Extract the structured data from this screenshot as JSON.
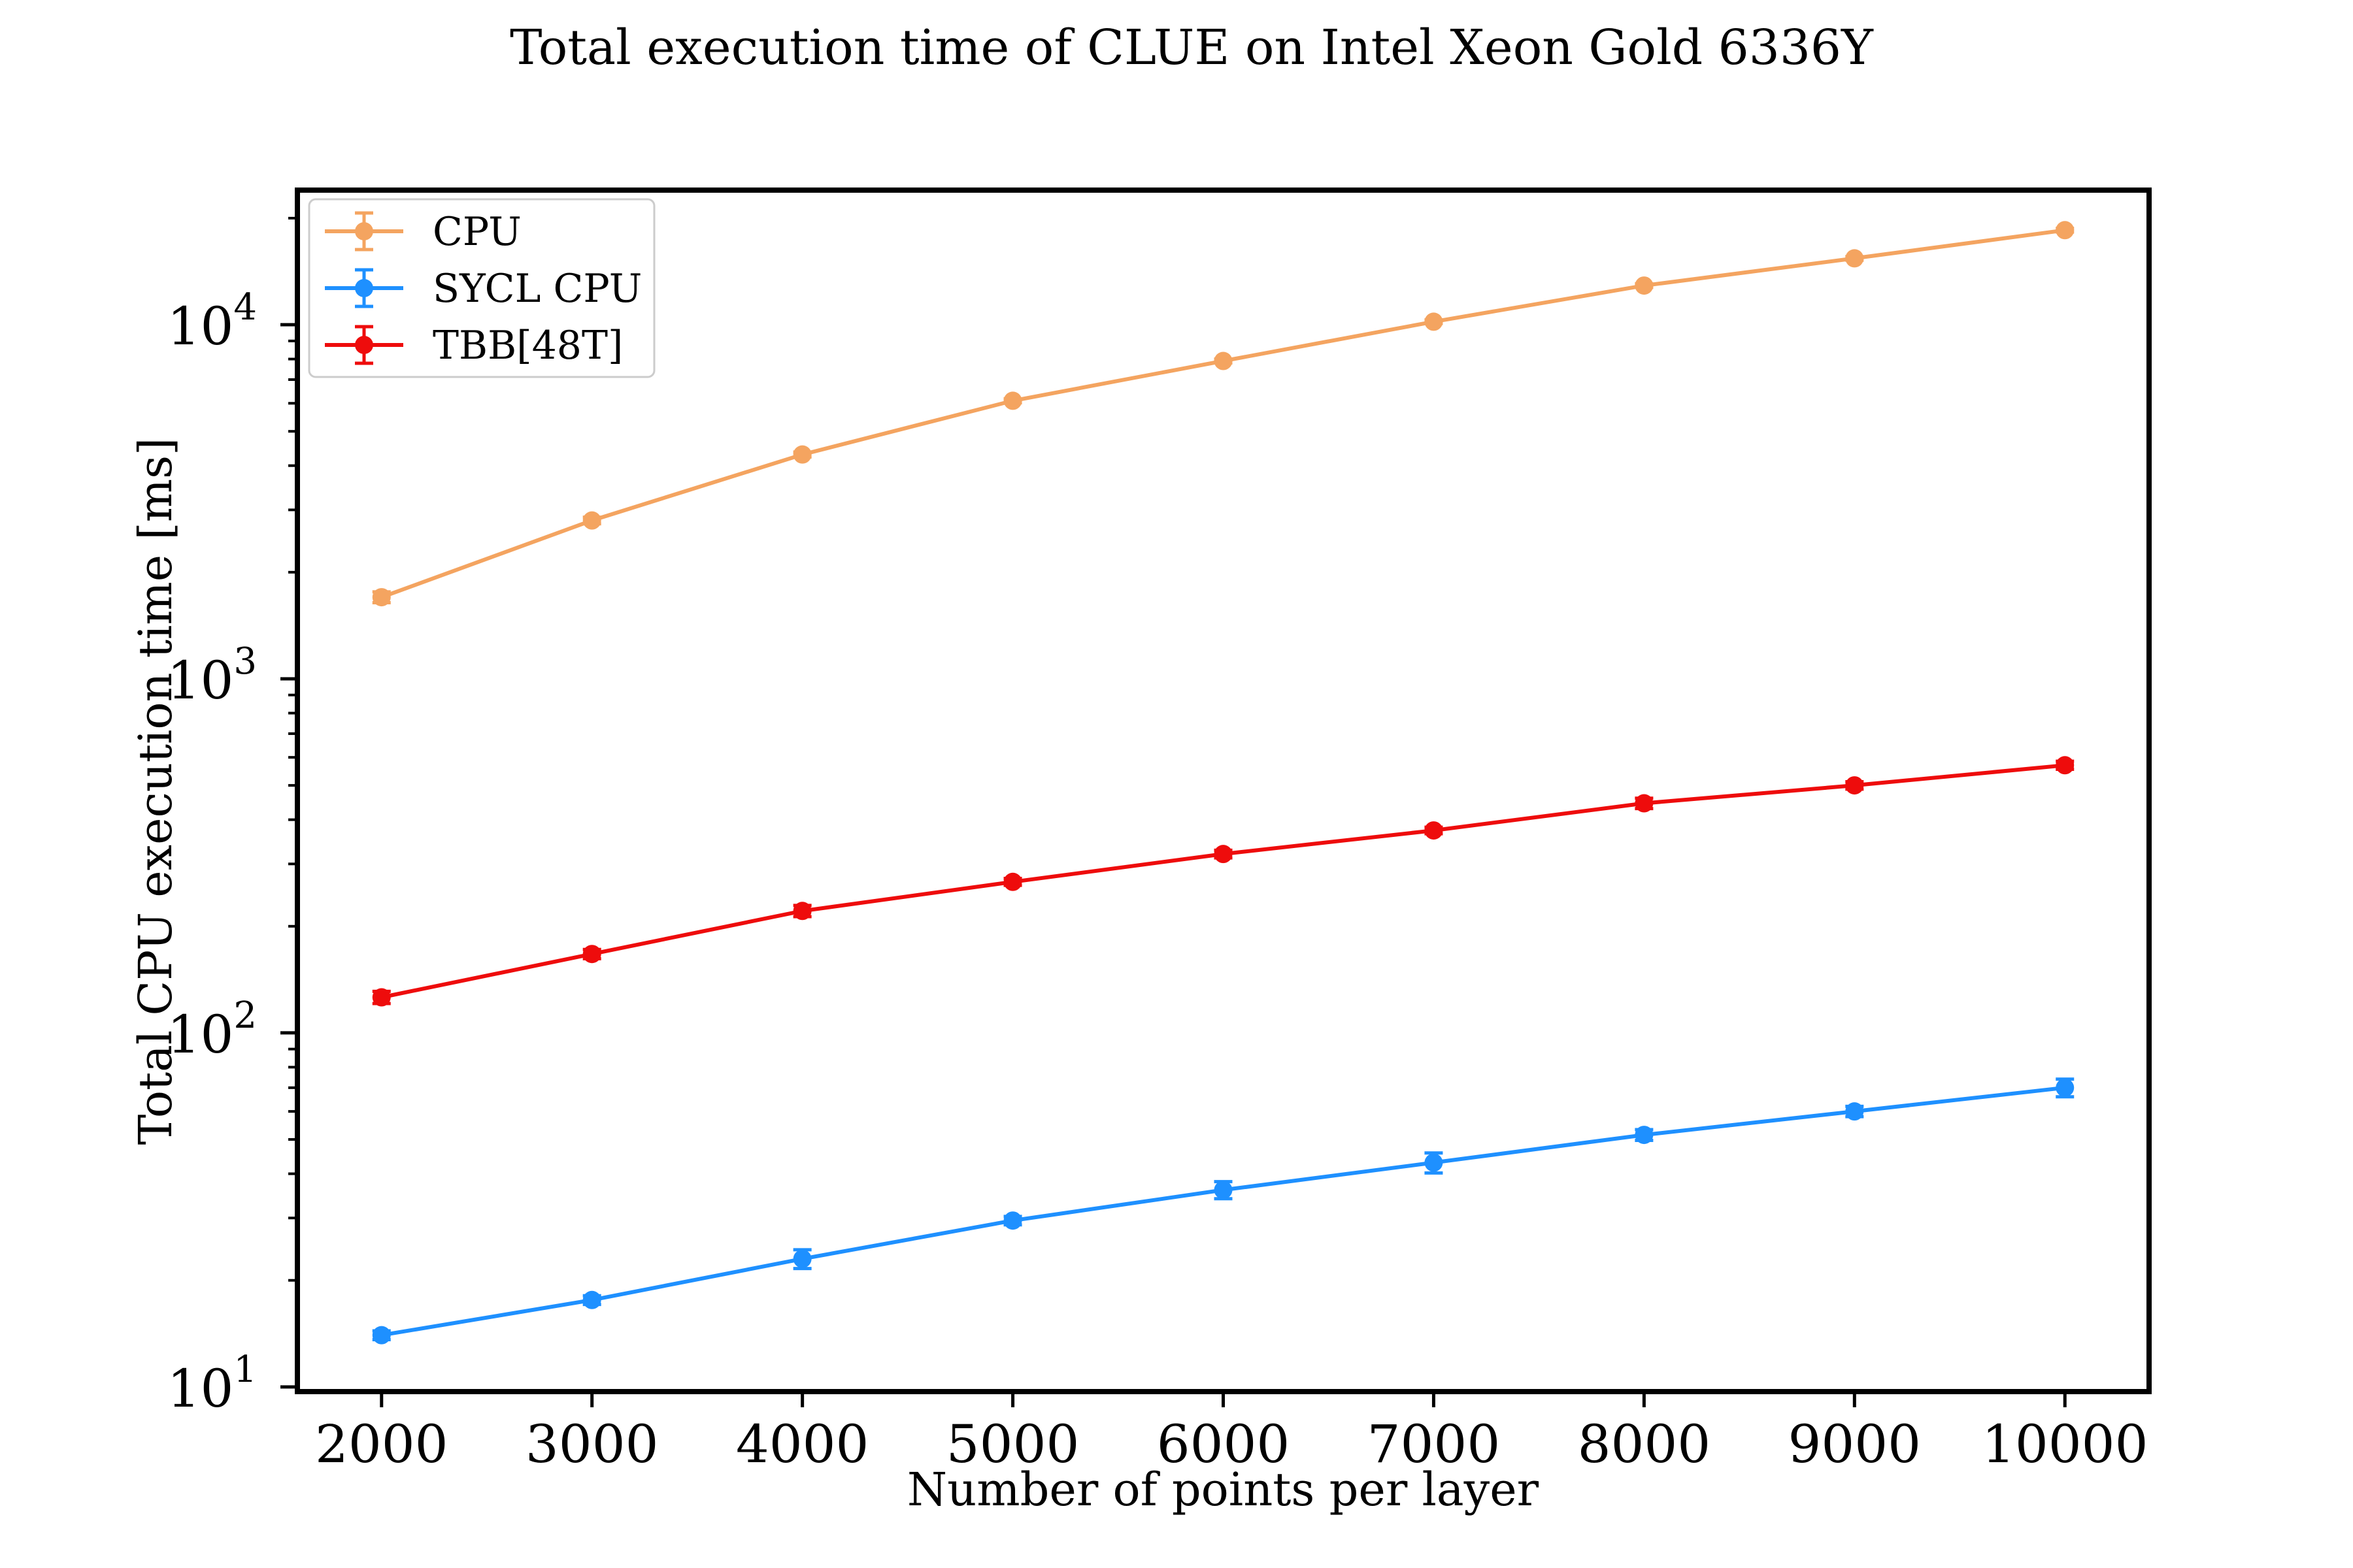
{
  "chart_data": {
    "type": "line",
    "title": "Total execution time of CLUE on Intel Xeon Gold 6336Y",
    "xlabel": "Number of points per layer",
    "ylabel": "Total CPU execution time [ms]",
    "xlim": [
      1600,
      10400
    ],
    "ylim": [
      9.7,
      24000
    ],
    "yscale": "log",
    "grid": false,
    "legend_position": "top-left",
    "x": [
      2000,
      3000,
      4000,
      5000,
      6000,
      7000,
      8000,
      9000,
      10000
    ],
    "x_tick_labels": [
      "2000",
      "3000",
      "4000",
      "5000",
      "6000",
      "7000",
      "8000",
      "9000",
      "10000"
    ],
    "y_ticks": [
      {
        "value": 10,
        "base": "10",
        "exp": "1"
      },
      {
        "value": 100,
        "base": "10",
        "exp": "2"
      },
      {
        "value": 1000,
        "base": "10",
        "exp": "3"
      },
      {
        "value": 10000,
        "base": "10",
        "exp": "4"
      }
    ],
    "series": [
      {
        "name": "CPU",
        "color": "#f4a460",
        "values": [
          1700,
          2800,
          4300,
          6100,
          7900,
          10200,
          12900,
          15400,
          18500
        ],
        "errors": [
          60,
          60,
          70,
          80,
          100,
          120,
          150,
          180,
          220
        ]
      },
      {
        "name": "SYCL CPU",
        "color": "#1e90ff",
        "values": [
          14.0,
          17.6,
          23.0,
          29.5,
          36.0,
          43.0,
          51.5,
          60.0,
          70.0
        ],
        "errors": [
          0.4,
          0.5,
          1.4,
          0.8,
          2.0,
          2.8,
          1.8,
          2.0,
          4.0
        ]
      },
      {
        "name": "TBB[48T]",
        "color": "#ee0c0c",
        "values": [
          126,
          167,
          221,
          267,
          320,
          373,
          445,
          500,
          570
        ],
        "errors": [
          5,
          5,
          8,
          6,
          8,
          8,
          15,
          12,
          15
        ]
      }
    ]
  }
}
